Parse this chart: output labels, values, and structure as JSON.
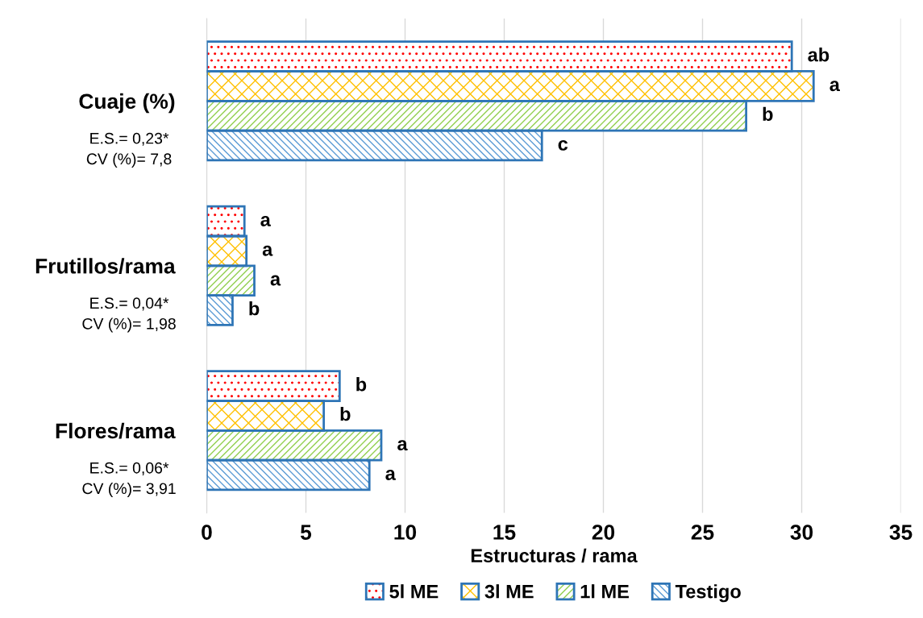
{
  "chart_data": {
    "type": "bar",
    "orientation": "horizontal",
    "xlabel": "Estructuras / rama",
    "categories": [
      "Cuaje (%)",
      "Frutillos/rama",
      "Flores/rama"
    ],
    "series": [
      {
        "name": "5l ME",
        "color": "#ff0000",
        "values": [
          29.5,
          1.9,
          6.7
        ],
        "value_labels": [
          "ab",
          "a",
          "b"
        ]
      },
      {
        "name": "3l ME",
        "color": "#ffc000",
        "values": [
          30.6,
          2.0,
          5.9
        ],
        "value_labels": [
          "a",
          "a",
          "b"
        ]
      },
      {
        "name": "1l ME",
        "color": "#92d050",
        "values": [
          27.2,
          2.4,
          8.8
        ],
        "value_labels": [
          "b",
          "a",
          "a"
        ]
      },
      {
        "name": "Testigo",
        "color": "#5b9bd5",
        "values": [
          16.9,
          1.3,
          8.2
        ],
        "value_labels": [
          "c",
          "b",
          "a"
        ]
      }
    ],
    "xlim": [
      0,
      35
    ],
    "xticks": [
      0,
      5,
      10,
      15,
      20,
      25,
      30,
      35
    ],
    "grid": "x",
    "legend": "bottom",
    "annotations": [
      "E.S.= 0,23*",
      "CV (%)= 7,8",
      "E.S.= 0,04*",
      "CV (%)= 1,98",
      "E.S.= 0,06*",
      "CV (%)= 3,91"
    ]
  }
}
